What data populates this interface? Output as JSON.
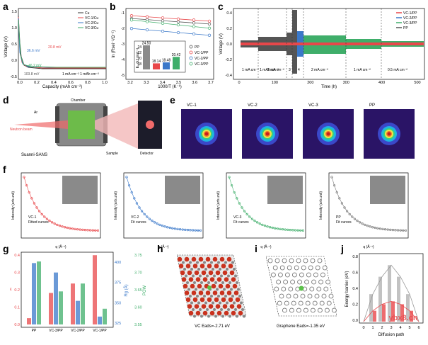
{
  "panels": {
    "a": {
      "label": "a",
      "ylabel": "Voltage (V)",
      "xlabel": "Capacity (mAh cm⁻²)",
      "yticks": [
        "1.5",
        "1.0",
        "0.5",
        "0.0",
        "-0.5"
      ],
      "xticks": [
        "0.0",
        "0.2",
        "0.4",
        "0.6",
        "0.8",
        "1.0"
      ],
      "legend": [
        "Cu",
        "VC-1/Cu",
        "VC-2/Cu",
        "VC-3/Cu"
      ],
      "legend_colors": [
        "#333333",
        "#e8474a",
        "#3a78c9",
        "#3fae6a"
      ],
      "annot": [
        "36.6 mV",
        "20.8 mV",
        "46.2 mV",
        "103.8 mV",
        "1 mA cm⁻² 1 mAh cm⁻²"
      ]
    },
    "b": {
      "label": "b",
      "ylabel": "ln (Rsei⁻¹/Ω⁻¹)",
      "xlabel": "1000/T (K⁻¹)",
      "yticks": [
        "-1",
        "-2",
        "-3",
        "-4",
        "-5"
      ],
      "xticks": [
        "3.2",
        "3.3",
        "3.4",
        "3.5",
        "3.6",
        "3.7"
      ],
      "legend": [
        "PP",
        "VC-1/PP",
        "VC-2/PP",
        "VC-3/PP"
      ],
      "inset_ylabel": "Eₐ (kJ mol⁻¹)",
      "inset_yticks": [
        "24",
        "22",
        "20",
        "18"
      ],
      "bar_values": [
        "24.50",
        "18.14",
        "18.48",
        "20.42"
      ]
    },
    "c": {
      "label": "c",
      "ylabel": "Voltage (V)",
      "xlabel": "Time (h)",
      "yticks": [
        "0.4",
        "0.2",
        "0.0",
        "-0.2",
        "-0.4"
      ],
      "xticks": [
        "0",
        "100",
        "200",
        "300",
        "400",
        "500"
      ],
      "legend": [
        "VC-1/PP",
        "VC-2/PP",
        "VC-3/PP",
        "PP"
      ],
      "segments": [
        "1 mA cm⁻² 1 mAh cm⁻²",
        "2 mA cm⁻²",
        "3",
        "4",
        "2 mA cm⁻²",
        "1 mA cm⁻²",
        "0.5 mA cm⁻²"
      ]
    },
    "d": {
      "label": "d",
      "labels": [
        "Chamber",
        "Ar",
        "Neutron beam",
        "Sample",
        "Detector",
        "Suanni-SANS"
      ]
    },
    "e": {
      "label": "e",
      "titles": [
        "VC-1",
        "VC-2",
        "VC-3",
        "PP"
      ]
    },
    "f": {
      "label": "f",
      "ylabel": "Intensity (arb.unit)",
      "xlabel": "q (Å⁻¹)",
      "plots": [
        {
          "legend": [
            "VC-1",
            "Fitted curves"
          ],
          "color": "#e8474a"
        },
        {
          "legend": [
            "VC-2",
            "Fit curves"
          ],
          "color": "#3a78c9"
        },
        {
          "legend": [
            "VC-3",
            "Fit curves"
          ],
          "color": "#3fae6a"
        },
        {
          "legend": [
            "PP",
            "Fit curves"
          ],
          "color": "#777777"
        }
      ]
    },
    "g": {
      "label": "g",
      "ylabel_left": "ε",
      "ylabel_mid": "Rg (Å)",
      "ylabel_right": "POW",
      "categories": [
        "PP",
        "VC-3/PP",
        "VC-2/PP",
        "VC-1/PP"
      ],
      "yticks_left": [
        "0.4",
        "0.3",
        "0.2",
        "0.1",
        "0.0"
      ],
      "yticks_mid": [
        "400",
        "375",
        "350",
        "325"
      ],
      "yticks_right": [
        "3.75",
        "3.70",
        "3.65",
        "3.60",
        "3.55"
      ]
    },
    "h": {
      "label": "h",
      "caption": "VC Eads=-2.71 eV"
    },
    "i": {
      "label": "i",
      "caption": "Graphene Eads=-1.35 eV"
    },
    "j": {
      "label": "j",
      "ylabel": "Energy barrier (eV)",
      "xlabel": "Diffusion path",
      "yticks": [
        "0.8",
        "0.6",
        "0.4",
        "0.2",
        "0.0"
      ],
      "xticks": [
        "0",
        "1",
        "2",
        "3",
        "4",
        "5",
        "6"
      ],
      "watermark": "ybx8.cn"
    }
  },
  "chart_data": [
    {
      "type": "bar",
      "panel": "b-inset",
      "categories": [
        "PP",
        "VC-1/PP",
        "VC-2/PP",
        "VC-3/PP"
      ],
      "values": [
        24.5,
        18.14,
        18.48,
        20.42
      ],
      "ylabel": "Eₐ (kJ mol⁻¹)",
      "ylim": [
        16,
        25
      ],
      "colors": [
        "#8a8a8a",
        "#e8474a",
        "#3a78c9",
        "#3fae6a"
      ]
    },
    {
      "type": "bar",
      "panel": "g",
      "categories": [
        "PP",
        "VC-3/PP",
        "VC-2/PP",
        "VC-1/PP"
      ],
      "series": [
        {
          "name": "ε",
          "color": "#e8474a",
          "values": [
            0.04,
            0.2,
            0.26,
            0.44
          ]
        },
        {
          "name": "Rg",
          "color": "#3a78c9",
          "values": [
            0.39,
            0.33,
            0.15,
            0.05
          ]
        },
        {
          "name": "POW",
          "color": "#3fae6a",
          "values": [
            0.4,
            0.21,
            0.26,
            0.1
          ]
        }
      ],
      "ylim": [
        0,
        0.45
      ]
    },
    {
      "type": "bar",
      "panel": "j",
      "categories": [
        "0",
        "1",
        "2",
        "3",
        "4",
        "5",
        "6"
      ],
      "series": [
        {
          "name": "graphene",
          "color": "#9a9a9a",
          "values": [
            0.0,
            0.38,
            0.62,
            0.78,
            0.62,
            0.38,
            0.0
          ]
        },
        {
          "name": "VC",
          "color": "#e8474a",
          "values": [
            0.0,
            0.15,
            0.24,
            0.28,
            0.24,
            0.15,
            0.0
          ]
        }
      ],
      "ylim": [
        0,
        0.9
      ]
    }
  ]
}
